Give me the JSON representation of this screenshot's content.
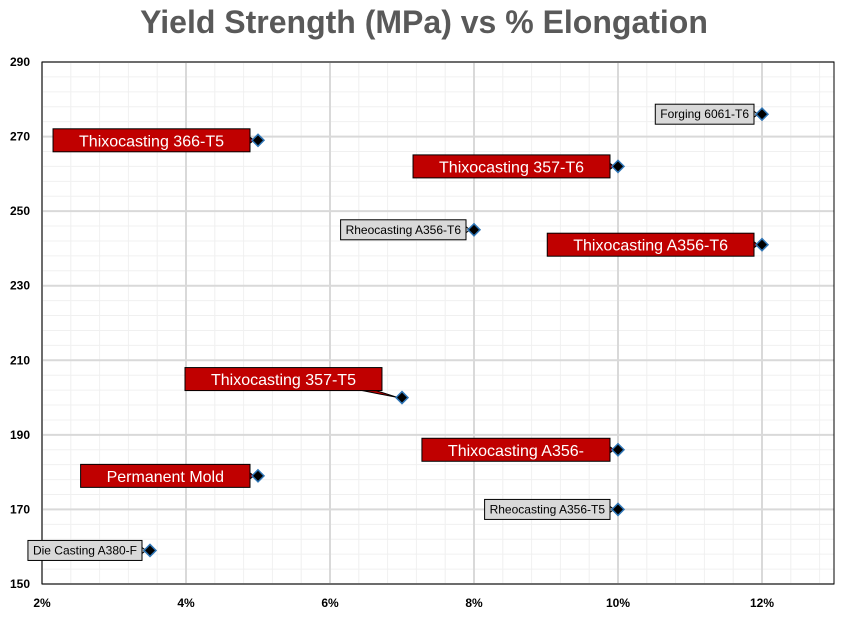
{
  "chart_data": {
    "type": "scatter",
    "title": "Yield Strength (MPa) vs % Elongation",
    "xlabel": "",
    "ylabel": "",
    "xlim": [
      2,
      13
    ],
    "ylim": [
      150,
      290
    ],
    "x_ticks": [
      {
        "value": 2,
        "label": "2%"
      },
      {
        "value": 4,
        "label": "4%"
      },
      {
        "value": 6,
        "label": "6%"
      },
      {
        "value": 8,
        "label": "8%"
      },
      {
        "value": 10,
        "label": "10%"
      },
      {
        "value": 12,
        "label": "12%"
      }
    ],
    "y_ticks": [
      150,
      170,
      190,
      210,
      230,
      250,
      270,
      290
    ],
    "grid": true,
    "colors": {
      "marker": "#000000",
      "marker_outline": "#2e75b6",
      "label_red": "#c00000",
      "label_gray": "#d9d9d9",
      "major_grid": "#d9d9d9",
      "minor_grid": "#f0f0f0"
    },
    "points": [
      {
        "label": "Forging 6061-T6",
        "x": 12,
        "y": 276,
        "style": "gray"
      },
      {
        "label": "Thixocasting 366-T5",
        "x": 5,
        "y": 269,
        "style": "red"
      },
      {
        "label": "Thixocasting 357-T6",
        "x": 10,
        "y": 262,
        "style": "red"
      },
      {
        "label": "Rheocasting A356-T6",
        "x": 8,
        "y": 245,
        "style": "gray"
      },
      {
        "label": "Thixocasting A356-T6",
        "x": 12,
        "y": 241,
        "style": "red"
      },
      {
        "label": "Thixocasting 357-T5",
        "x": 7,
        "y": 200,
        "style": "red"
      },
      {
        "label": "Thixocasting A356-",
        "x": 10,
        "y": 186,
        "style": "red"
      },
      {
        "label": "Permanent Mold",
        "x": 5,
        "y": 179,
        "style": "red"
      },
      {
        "label": "Rheocasting A356-T5",
        "x": 10,
        "y": 170,
        "style": "gray"
      },
      {
        "label": "Die Casting A380-F",
        "x": 3.5,
        "y": 159,
        "style": "gray"
      }
    ]
  }
}
